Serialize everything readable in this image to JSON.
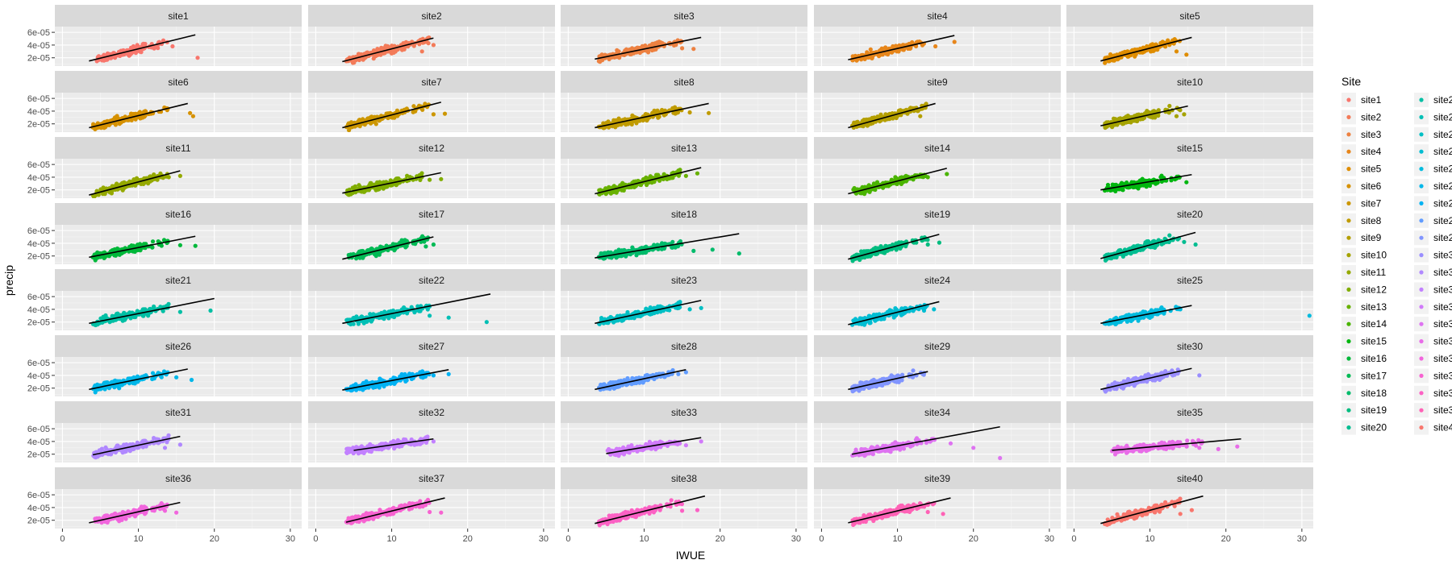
{
  "chart_data": {
    "type": "scatter",
    "layout": "facet_wrap",
    "ncol": 5,
    "xlabel": "IWUE",
    "ylabel": "precip",
    "xlim": [
      -1,
      31.5
    ],
    "ylim": [
      7e-06,
      6.9e-05
    ],
    "x_ticks": [
      0,
      10,
      20,
      30
    ],
    "x_tick_labels": [
      "0",
      "10",
      "20",
      "30"
    ],
    "y_ticks": [
      2e-05,
      4e-05,
      6e-05
    ],
    "y_tick_labels": [
      "2e-05",
      "4e-05",
      "6e-05"
    ],
    "grid": true,
    "legend": {
      "title": "Site",
      "position": "right",
      "columns": 2
    },
    "fit_line_color": "#000000",
    "panels": [
      {
        "site": "site1",
        "color": "#F8766D",
        "cluster": [
          4.5,
          11
        ],
        "outliers": [
          [
            14.5,
            3.8e-05
          ],
          [
            17.8,
            2e-05
          ]
        ],
        "fit": [
          [
            3.5,
            1.5e-05
          ],
          [
            17.5,
            5.6e-05
          ]
        ]
      },
      {
        "site": "site2",
        "color": "#F37B59",
        "cluster": [
          4,
          12
        ],
        "outliers": [
          [
            14,
            3e-05
          ],
          [
            15.5,
            4e-05
          ]
        ],
        "fit": [
          [
            3.5,
            1.4e-05
          ],
          [
            15.5,
            5.1e-05
          ]
        ]
      },
      {
        "site": "site3",
        "color": "#ED8141",
        "cluster": [
          4,
          12
        ],
        "outliers": [
          [
            15,
            3.5e-05
          ],
          [
            16.5,
            3.4e-05
          ]
        ],
        "fit": [
          [
            3.5,
            1.8e-05
          ],
          [
            17.5,
            5.2e-05
          ]
        ]
      },
      {
        "site": "site4",
        "color": "#E7861B",
        "cluster": [
          4,
          11
        ],
        "outliers": [
          [
            15,
            3.8e-05
          ],
          [
            17.5,
            4.5e-05
          ]
        ],
        "fit": [
          [
            3.5,
            1.7e-05
          ],
          [
            17.5,
            5.5e-05
          ]
        ]
      },
      {
        "site": "site5",
        "color": "#DF8D00",
        "cluster": [
          4,
          11
        ],
        "outliers": [
          [
            13.5,
            3e-05
          ],
          [
            14.8,
            2.5e-05
          ]
        ],
        "fit": [
          [
            3.5,
            1.5e-05
          ],
          [
            15.5,
            5.2e-05
          ]
        ]
      },
      {
        "site": "site6",
        "color": "#D69100",
        "cluster": [
          4,
          11
        ],
        "outliers": [
          [
            16.8,
            3.7e-05
          ],
          [
            17.2,
            3.2e-05
          ]
        ],
        "fit": [
          [
            3.5,
            1.4e-05
          ],
          [
            16.5,
            5.2e-05
          ]
        ]
      },
      {
        "site": "site7",
        "color": "#CC9600",
        "cluster": [
          4,
          12
        ],
        "outliers": [
          [
            15.5,
            3.5e-05
          ],
          [
            17,
            3.6e-05
          ]
        ],
        "fit": [
          [
            3.5,
            1.4e-05
          ],
          [
            16.5,
            5.4e-05
          ]
        ]
      },
      {
        "site": "site8",
        "color": "#C09B00",
        "cluster": [
          4,
          12
        ],
        "outliers": [
          [
            16,
            3.8e-05
          ],
          [
            18.5,
            3.7e-05
          ]
        ],
        "fit": [
          [
            3.5,
            1.4e-05
          ],
          [
            18.5,
            5.2e-05
          ]
        ]
      },
      {
        "site": "site9",
        "color": "#B49F00",
        "cluster": [
          4,
          11
        ],
        "outliers": [
          [
            13,
            3.2e-05
          ]
        ],
        "fit": [
          [
            3.5,
            1.4e-05
          ],
          [
            15,
            5.2e-05
          ]
        ]
      },
      {
        "site": "site10",
        "color": "#A5A300",
        "cluster": [
          4,
          11
        ],
        "outliers": [
          [
            14.5,
            3.5e-05
          ],
          [
            13.5,
            3.2e-05
          ]
        ],
        "fit": [
          [
            3.5,
            1.7e-05
          ],
          [
            15,
            4.8e-05
          ]
        ]
      },
      {
        "site": "site11",
        "color": "#95A900",
        "cluster": [
          4,
          11
        ],
        "outliers": [
          [
            14,
            4e-05
          ],
          [
            15.5,
            4.2e-05
          ],
          [
            12.5,
            3.6e-05
          ]
        ],
        "fit": [
          [
            3.5,
            1.2e-05
          ],
          [
            15.5,
            5e-05
          ]
        ]
      },
      {
        "site": "site12",
        "color": "#80AD00",
        "cluster": [
          4,
          11
        ],
        "outliers": [
          [
            15,
            3.6e-05
          ],
          [
            16.5,
            3.7e-05
          ]
        ],
        "fit": [
          [
            3.5,
            1.5e-05
          ],
          [
            16.5,
            4.7e-05
          ]
        ]
      },
      {
        "site": "site13",
        "color": "#68B100",
        "cluster": [
          4,
          12
        ],
        "outliers": [
          [
            15.5,
            4.2e-05
          ],
          [
            17,
            4.6e-05
          ]
        ],
        "fit": [
          [
            3.5,
            1.4e-05
          ],
          [
            17.5,
            5.5e-05
          ]
        ]
      },
      {
        "site": "site14",
        "color": "#4AB400",
        "cluster": [
          4,
          11
        ],
        "outliers": [
          [
            14,
            4e-05
          ],
          [
            16.5,
            4.5e-05
          ]
        ],
        "fit": [
          [
            3.5,
            1.4e-05
          ],
          [
            16.5,
            5.4e-05
          ]
        ]
      },
      {
        "site": "site15",
        "color": "#00B60F",
        "cluster": [
          4,
          11
        ],
        "outliers": [
          [
            13.5,
            3.8e-05
          ],
          [
            14.8,
            3.2e-05
          ]
        ],
        "fit": [
          [
            3.5,
            2e-05
          ],
          [
            15.5,
            4.4e-05
          ]
        ]
      },
      {
        "site": "site16",
        "color": "#00B83A",
        "cluster": [
          4,
          11
        ],
        "outliers": [
          [
            15.5,
            3.7e-05
          ],
          [
            17.5,
            3.6e-05
          ]
        ],
        "fit": [
          [
            3.5,
            1.8e-05
          ],
          [
            17.5,
            5.1e-05
          ]
        ]
      },
      {
        "site": "site17",
        "color": "#00BA55",
        "cluster": [
          4,
          12
        ],
        "outliers": [
          [
            14.5,
            3.5e-05
          ],
          [
            15.5,
            3.8e-05
          ]
        ],
        "fit": [
          [
            3.5,
            1.5e-05
          ],
          [
            15.5,
            5e-05
          ]
        ]
      },
      {
        "site": "site18",
        "color": "#00BB6B",
        "cluster": [
          4,
          12
        ],
        "outliers": [
          [
            16.5,
            2.8e-05
          ],
          [
            19,
            3e-05
          ],
          [
            22.5,
            2.4e-05
          ]
        ],
        "fit": [
          [
            3.5,
            1.7e-05
          ],
          [
            22.5,
            5.5e-05
          ]
        ]
      },
      {
        "site": "site19",
        "color": "#00BC7F",
        "cluster": [
          4,
          11
        ],
        "outliers": [
          [
            14,
            3.8e-05
          ],
          [
            15.5,
            4.1e-05
          ]
        ],
        "fit": [
          [
            3.5,
            1.5e-05
          ],
          [
            15.5,
            5.4e-05
          ]
        ]
      },
      {
        "site": "site20",
        "color": "#00BD91",
        "cluster": [
          4,
          11
        ],
        "outliers": [
          [
            14.5,
            4.2e-05
          ],
          [
            16,
            3.8e-05
          ]
        ],
        "fit": [
          [
            3.5,
            1.6e-05
          ],
          [
            16,
            5.7e-05
          ]
        ]
      },
      {
        "site": "site21",
        "color": "#00BFA4",
        "cluster": [
          4,
          11
        ],
        "outliers": [
          [
            15.5,
            3.6e-05
          ],
          [
            19.5,
            3.8e-05
          ]
        ],
        "fit": [
          [
            3.5,
            1.8e-05
          ],
          [
            20,
            5.7e-05
          ]
        ]
      },
      {
        "site": "site22",
        "color": "#00BFB5",
        "cluster": [
          4,
          12
        ],
        "outliers": [
          [
            15,
            3e-05
          ],
          [
            17.5,
            2.7e-05
          ],
          [
            22.5,
            2e-05
          ]
        ],
        "fit": [
          [
            3.5,
            1.8e-05
          ],
          [
            23,
            6.4e-05
          ]
        ]
      },
      {
        "site": "site23",
        "color": "#00BFC4",
        "cluster": [
          4,
          12
        ],
        "outliers": [
          [
            16,
            4e-05
          ],
          [
            17.5,
            4.2e-05
          ]
        ],
        "fit": [
          [
            3.5,
            1.8e-05
          ],
          [
            17.5,
            5.4e-05
          ]
        ]
      },
      {
        "site": "site24",
        "color": "#00BDD2",
        "cluster": [
          4,
          11
        ],
        "outliers": [
          [
            13.5,
            3.8e-05
          ],
          [
            14.8,
            4e-05
          ]
        ],
        "fit": [
          [
            3.5,
            1.6e-05
          ],
          [
            15.5,
            5.2e-05
          ]
        ]
      },
      {
        "site": "site25",
        "color": "#00BBDE",
        "cluster": [
          4,
          11
        ],
        "outliers": [
          [
            14,
            4e-05
          ],
          [
            31,
            3e-05
          ]
        ],
        "fit": [
          [
            3.5,
            1.8e-05
          ],
          [
            15.5,
            4.6e-05
          ]
        ]
      },
      {
        "site": "site26",
        "color": "#00B7E9",
        "cluster": [
          4,
          11
        ],
        "outliers": [
          [
            15,
            3.7e-05
          ],
          [
            17,
            3.3e-05
          ]
        ],
        "fit": [
          [
            3.5,
            1.8e-05
          ],
          [
            16.5,
            5e-05
          ]
        ]
      },
      {
        "site": "site27",
        "color": "#00B2F3",
        "cluster": [
          4,
          12
        ],
        "outliers": [
          [
            15.5,
            4e-05
          ],
          [
            17.5,
            4.2e-05
          ]
        ],
        "fit": [
          [
            3.5,
            1.7e-05
          ],
          [
            17.5,
            4.9e-05
          ]
        ]
      },
      {
        "site": "site28",
        "color": "#619CFF",
        "cluster": [
          4,
          11
        ],
        "outliers": [
          [
            14.5,
            4.2e-05
          ],
          [
            15.5,
            4.5e-05
          ]
        ],
        "fit": [
          [
            3.5,
            1.8e-05
          ],
          [
            15.5,
            4.9e-05
          ]
        ]
      },
      {
        "site": "site29",
        "color": "#8195FF",
        "cluster": [
          4,
          10.5
        ],
        "outliers": [
          [
            12.5,
            4e-05
          ],
          [
            13.5,
            4.4e-05
          ]
        ],
        "fit": [
          [
            3.5,
            1.8e-05
          ],
          [
            14,
            4.6e-05
          ]
        ]
      },
      {
        "site": "site30",
        "color": "#9A8EFF",
        "cluster": [
          4,
          11
        ],
        "outliers": [
          [
            13,
            4e-05
          ],
          [
            16.5,
            4e-05
          ]
        ],
        "fit": [
          [
            3.5,
            1.8e-05
          ],
          [
            15.5,
            5.1e-05
          ]
        ]
      },
      {
        "site": "site31",
        "color": "#B088FF",
        "cluster": [
          4,
          11
        ],
        "outliers": [
          [
            13.5,
            3e-05
          ],
          [
            15.5,
            3.5e-05
          ]
        ],
        "fit": [
          [
            4,
            1.9e-05
          ],
          [
            15.5,
            4.8e-05
          ]
        ]
      },
      {
        "site": "site32",
        "color": "#C281FF",
        "cluster": [
          4,
          12
        ],
        "outliers": [
          [
            14,
            3.8e-05
          ],
          [
            15.5,
            4e-05
          ]
        ],
        "fit": [
          [
            5,
            2.6e-05
          ],
          [
            15.5,
            4.4e-05
          ]
        ]
      },
      {
        "site": "site33",
        "color": "#D17AFA",
        "cluster": [
          5,
          12
        ],
        "outliers": [
          [
            15.5,
            3.4e-05
          ],
          [
            17.5,
            4e-05
          ]
        ],
        "fit": [
          [
            5,
            2.1e-05
          ],
          [
            17.5,
            4.6e-05
          ]
        ]
      },
      {
        "site": "site34",
        "color": "#DE73F1",
        "cluster": [
          4,
          12
        ],
        "outliers": [
          [
            17,
            3.7e-05
          ],
          [
            20,
            3e-05
          ],
          [
            23.5,
            1.4e-05
          ]
        ],
        "fit": [
          [
            4,
            2e-05
          ],
          [
            23.5,
            6.3e-05
          ]
        ]
      },
      {
        "site": "site35",
        "color": "#E86CE8",
        "cluster": [
          5,
          14
        ],
        "outliers": [
          [
            16.5,
            3e-05
          ],
          [
            19,
            2.8e-05
          ],
          [
            21.5,
            3.2e-05
          ]
        ],
        "fit": [
          [
            5,
            2.6e-05
          ],
          [
            22,
            4.4e-05
          ]
        ]
      },
      {
        "site": "site36",
        "color": "#F166DD",
        "cluster": [
          4,
          11
        ],
        "outliers": [
          [
            13.5,
            3.5e-05
          ],
          [
            15,
            3.2e-05
          ]
        ],
        "fit": [
          [
            3.5,
            1.6e-05
          ],
          [
            15.5,
            4.8e-05
          ]
        ]
      },
      {
        "site": "site37",
        "color": "#F763D1",
        "cluster": [
          4,
          12
        ],
        "outliers": [
          [
            15,
            3.3e-05
          ],
          [
            16.5,
            3.2e-05
          ]
        ],
        "fit": [
          [
            4,
            1.7e-05
          ],
          [
            17,
            5.5e-05
          ]
        ]
      },
      {
        "site": "site38",
        "color": "#FC61C4",
        "cluster": [
          4,
          12
        ],
        "outliers": [
          [
            15,
            3.5e-05
          ],
          [
            17,
            3.6e-05
          ]
        ],
        "fit": [
          [
            3.5,
            1.5e-05
          ],
          [
            18,
            5.8e-05
          ]
        ]
      },
      {
        "site": "site39",
        "color": "#FF62B6",
        "cluster": [
          4,
          12
        ],
        "outliers": [
          [
            14,
            3.3e-05
          ],
          [
            16,
            3e-05
          ]
        ],
        "fit": [
          [
            3.5,
            1.6e-05
          ],
          [
            17,
            5.5e-05
          ]
        ]
      },
      {
        "site": "site40",
        "color": "#F8766D",
        "cluster": [
          4,
          11
        ],
        "outliers": [
          [
            14,
            3e-05
          ],
          [
            15.5,
            3.6e-05
          ]
        ],
        "fit": [
          [
            3.5,
            1.5e-05
          ],
          [
            17,
            5.8e-05
          ]
        ]
      }
    ]
  }
}
